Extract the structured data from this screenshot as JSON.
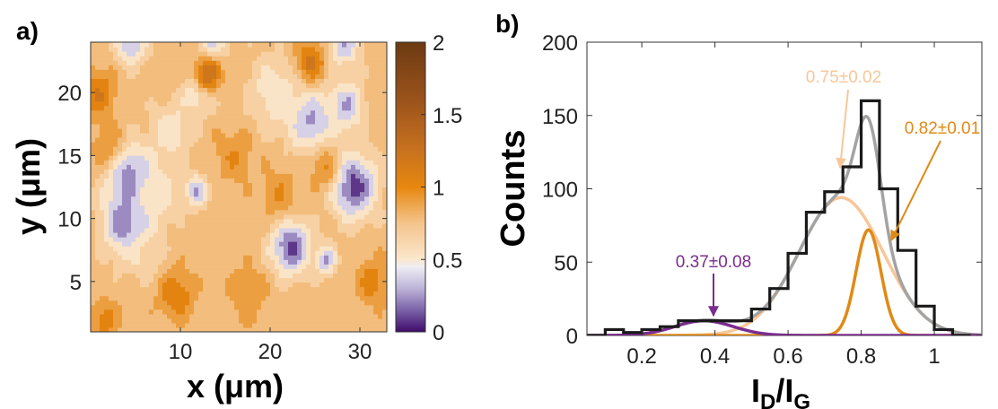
{
  "panels": {
    "a": "a)",
    "b": "b)"
  },
  "chart_data": [
    {
      "type": "heatmap",
      "panel_label": "a)",
      "xlabel": "x (μm)",
      "ylabel": "y (μm)",
      "xlim": [
        0,
        33
      ],
      "ylim": [
        1,
        24
      ],
      "x_ticks": [
        10,
        20,
        30
      ],
      "y_ticks": [
        5,
        10,
        15,
        20
      ],
      "colorbar": {
        "range": [
          0,
          2
        ],
        "ticks": [
          0,
          0.5,
          1,
          1.5,
          2
        ],
        "tick_labels": [
          "0",
          "0.5",
          "1",
          "1.5",
          "2"
        ],
        "colormap": [
          [
            0.0,
            "#3f0b6b"
          ],
          [
            0.15,
            "#7a62a8"
          ],
          [
            0.3,
            "#bdb3d8"
          ],
          [
            0.45,
            "#eeeef4"
          ],
          [
            0.5,
            "#fbe7cd"
          ],
          [
            0.75,
            "#f4c48c"
          ],
          [
            1.0,
            "#e7870f"
          ],
          [
            1.25,
            "#c8721f"
          ],
          [
            1.6,
            "#9b531b"
          ],
          [
            2.0,
            "#6c3a12"
          ]
        ]
      },
      "baseline_value": 0.78,
      "features": [
        {
          "x": 29.3,
          "y": 12.6,
          "value": 0.05,
          "spread": 1.7
        },
        {
          "x": 22.3,
          "y": 7.8,
          "value": 0.1,
          "spread": 1.5
        },
        {
          "x": 4.6,
          "y": 13.3,
          "value": 0.1,
          "spread": 1.7
        },
        {
          "x": 4.1,
          "y": 9.8,
          "value": 0.12,
          "spread": 1.8
        },
        {
          "x": 24.5,
          "y": 17.8,
          "value": 0.25,
          "spread": 1.7
        },
        {
          "x": 28.5,
          "y": 19.0,
          "value": 0.3,
          "spread": 1.3
        },
        {
          "x": 4.5,
          "y": 24.0,
          "value": 0.3,
          "spread": 1.2
        },
        {
          "x": 28.2,
          "y": 24.0,
          "value": 0.3,
          "spread": 1.2
        },
        {
          "x": 13.5,
          "y": 24.0,
          "value": 0.4,
          "spread": 1.1
        },
        {
          "x": 26.2,
          "y": 6.7,
          "value": 0.3,
          "spread": 0.8
        },
        {
          "x": 11.8,
          "y": 12.2,
          "value": 0.32,
          "spread": 0.9
        },
        {
          "x": 20.5,
          "y": 20.0,
          "value": 0.5,
          "spread": 2.0
        },
        {
          "x": 12.0,
          "y": 20.0,
          "value": 0.45,
          "spread": 1.2
        },
        {
          "x": 7.0,
          "y": 12.0,
          "value": 0.5,
          "spread": 1.8
        },
        {
          "x": 9.0,
          "y": 17.0,
          "value": 0.5,
          "spread": 1.5
        },
        {
          "x": 13.0,
          "y": 21.5,
          "value": 1.25,
          "spread": 1.0
        },
        {
          "x": 24.5,
          "y": 22.5,
          "value": 1.15,
          "spread": 1.1
        },
        {
          "x": 0.8,
          "y": 20.0,
          "value": 1.1,
          "spread": 1.3
        },
        {
          "x": 9.5,
          "y": 4.0,
          "value": 1.1,
          "spread": 1.3
        },
        {
          "x": 31.5,
          "y": 5.0,
          "value": 1.05,
          "spread": 1.2
        },
        {
          "x": 1.5,
          "y": 2.0,
          "value": 1.05,
          "spread": 1.0
        },
        {
          "x": 16.0,
          "y": 15.0,
          "value": 0.95,
          "spread": 1.5
        },
        {
          "x": 21.0,
          "y": 12.0,
          "value": 0.95,
          "spread": 1.4
        },
        {
          "x": 17.5,
          "y": 4.0,
          "value": 0.95,
          "spread": 1.5
        },
        {
          "x": 26.0,
          "y": 14.0,
          "value": 0.95,
          "spread": 1.2
        },
        {
          "x": 1.8,
          "y": 16.0,
          "value": 0.95,
          "spread": 1.2
        },
        {
          "x": 6.0,
          "y": 7.0,
          "value": 0.6,
          "spread": 1.3
        }
      ]
    },
    {
      "type": "line",
      "panel_label": "b)",
      "xlabel": "I_D/I_G",
      "xlabel_main": "I",
      "xlabel_sub1": "D",
      "xlabel_slash": "/I",
      "xlabel_sub2": "G",
      "ylabel": "Counts",
      "xlim": [
        0.05,
        1.13
      ],
      "ylim": [
        0,
        200
      ],
      "x_ticks": [
        0.2,
        0.4,
        0.6,
        0.8,
        1
      ],
      "x_tick_labels": [
        "0.2",
        "0.4",
        "0.6",
        "0.8",
        "1"
      ],
      "y_ticks": [
        0,
        50,
        100,
        150,
        200
      ],
      "y_tick_labels": [
        "0",
        "50",
        "100",
        "150",
        "200"
      ],
      "histogram": {
        "name": "",
        "color": "#1a1a1a",
        "bin_edges": [
          0.05,
          0.1,
          0.15,
          0.2,
          0.25,
          0.3,
          0.35,
          0.4,
          0.45,
          0.5,
          0.55,
          0.6,
          0.65,
          0.7,
          0.75,
          0.8,
          0.85,
          0.9,
          0.95,
          1.0,
          1.05,
          1.1
        ],
        "counts": [
          0,
          4,
          2,
          4,
          6,
          10,
          10,
          10,
          10,
          18,
          32,
          56,
          84,
          98,
          115,
          160,
          100,
          58,
          20,
          4,
          0
        ]
      },
      "gaussians": [
        {
          "label": "0.37±0.08",
          "center": 0.37,
          "sigma": 0.08,
          "amplitude": 10,
          "color": "#7b2d8e"
        },
        {
          "label": "0.75±0.02",
          "center": 0.745,
          "sigma": 0.115,
          "amplitude": 94,
          "color": "#f7c79a"
        },
        {
          "label": "0.82±0.01",
          "center": 0.82,
          "sigma": 0.034,
          "amplitude": 72,
          "color": "#e08a16"
        }
      ],
      "sum_curve_color": "#a3a3a3"
    }
  ]
}
